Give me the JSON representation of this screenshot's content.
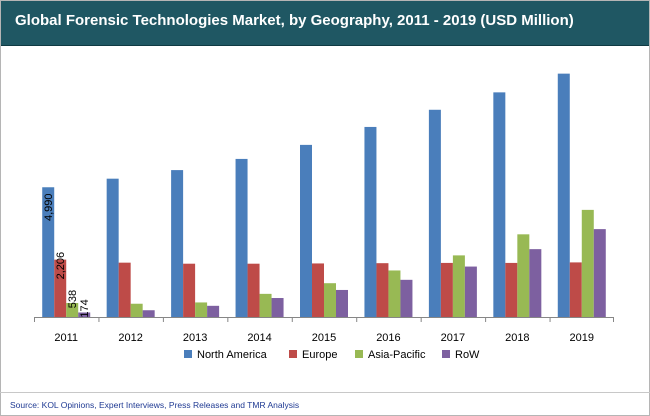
{
  "chart_data": {
    "type": "bar",
    "title": "Global Forensic Technologies Market, by Geography, 2011 - 2019 (USD Million)",
    "categories": [
      "2011",
      "2012",
      "2013",
      "2014",
      "2015",
      "2016",
      "2017",
      "2018",
      "2019"
    ],
    "series": [
      {
        "name": "North America",
        "color": "#4a7ebb",
        "values": [
          4990,
          5320,
          5650,
          6080,
          6620,
          7310,
          7970,
          8640,
          9360
        ]
      },
      {
        "name": "Europe",
        "color": "#be4b48",
        "values": [
          2206,
          2090,
          2050,
          2050,
          2060,
          2070,
          2080,
          2080,
          2100
        ]
      },
      {
        "name": "Asia-Pacific",
        "color": "#98b954",
        "values": [
          538,
          510,
          560,
          890,
          1300,
          1790,
          2370,
          3180,
          4120
        ]
      },
      {
        "name": "RoW",
        "color": "#7d60a0",
        "values": [
          174,
          260,
          430,
          730,
          1040,
          1430,
          1940,
          2610,
          3380
        ]
      }
    ],
    "data_labels": [
      {
        "series": "North America",
        "category": "2011",
        "text": "4,990"
      },
      {
        "series": "Europe",
        "category": "2011",
        "text": "2,206"
      },
      {
        "series": "Asia-Pacific",
        "category": "2011",
        "text": "538"
      },
      {
        "series": "RoW",
        "category": "2011",
        "text": "174"
      }
    ],
    "ylim": [
      0,
      10000
    ],
    "xlabel": "",
    "ylabel": "",
    "grid": false,
    "legend_position": "bottom"
  },
  "source_text": "Source:  KOL Opinions, Expert Interviews, Press Releases and TMR Analysis",
  "colors": {
    "title_bar": "#1f5763",
    "source_text": "#1f3a93"
  }
}
